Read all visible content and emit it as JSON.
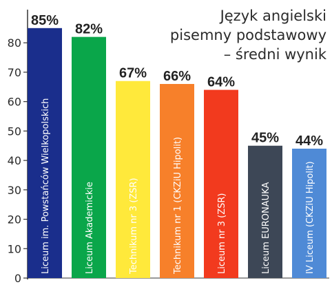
{
  "chart_data": {
    "type": "bar",
    "title_lines": [
      "Język angielski",
      "pisemny podstawowy",
      "– średni wynik"
    ],
    "categories": [
      "Liceum im. Powstańców Wielkopolskich",
      "Liceum Akademickie",
      "Technikum nr 3 (ZSR)",
      "Technikum nr 1 (CKZiU Hipolit)",
      "Liceum nr 3 (ZSR)",
      "Liceum EURONAUKA",
      "IV Liceum (CKZiU Hipolit)"
    ],
    "values": [
      85,
      82,
      67,
      66,
      64,
      45,
      44
    ],
    "value_labels": [
      "85%",
      "82%",
      "67%",
      "66%",
      "64%",
      "45%",
      "44%"
    ],
    "bar_colors": [
      "#1a2e8c",
      "#0aa64a",
      "#ffe93b",
      "#f7802a",
      "#f23a1e",
      "#3d4756",
      "#4f8ad6"
    ],
    "y_ticks": [
      0,
      10,
      20,
      30,
      40,
      50,
      60,
      70,
      80
    ],
    "ylim": [
      0,
      88
    ],
    "grid": false,
    "axis_color": "#333333"
  }
}
